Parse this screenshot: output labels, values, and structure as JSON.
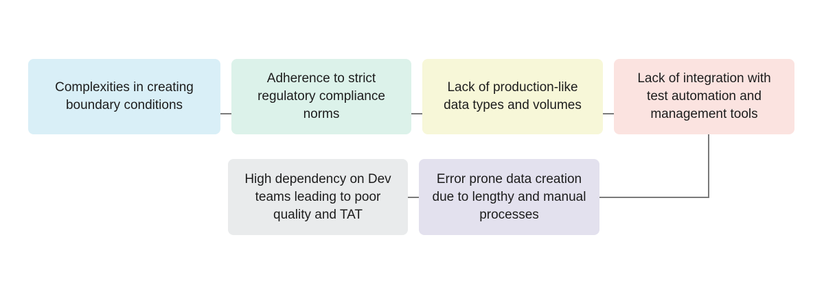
{
  "boxes": [
    {
      "text": "Complexities in creating boundary conditions",
      "color": "#d9eff7"
    },
    {
      "text": "Adherence to strict regulatory compliance norms",
      "color": "#dcf2ea"
    },
    {
      "text": "Lack of production-like data types and volumes",
      "color": "#f7f7d8"
    },
    {
      "text": "Lack of integration with test automation and management tools",
      "color": "#fbe3e0"
    },
    {
      "text": "Error prone data creation due to lengthy and manual processes",
      "color": "#e3e1ee"
    },
    {
      "text": "High dependency on Dev teams leading to poor quality and TAT",
      "color": "#e9ebec"
    }
  ],
  "connector_color": "#7a7a7a"
}
